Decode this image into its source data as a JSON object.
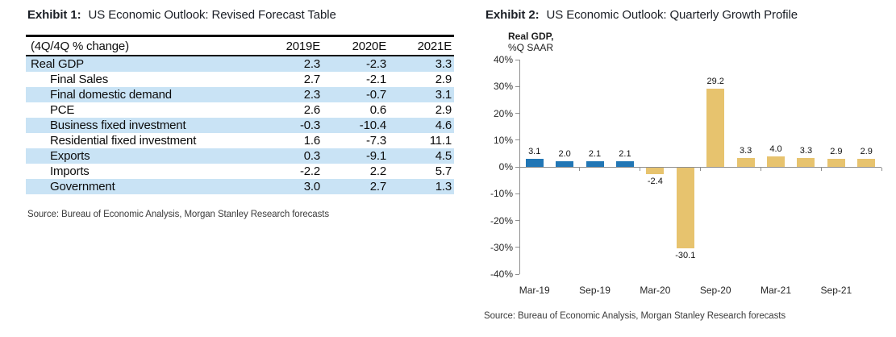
{
  "exhibit1": {
    "heading_label": "Exhibit 1:",
    "heading_title": "US Economic Outlook: Revised Forecast Table",
    "source": "Source: Bureau of Economic Analysis, Morgan Stanley Research forecasts"
  },
  "exhibit2": {
    "heading_label": "Exhibit 2:",
    "heading_title": "US Economic Outlook: Quarterly Growth Profile",
    "axis_title_line1": "Real GDP,",
    "axis_title_line2": "%Q SAAR",
    "source": "Source: Bureau of Economic Analysis, Morgan Stanley Research forecasts"
  },
  "colors": {
    "actual_bar": "#2176b5",
    "forecast_bar": "#e7c36e",
    "table_row_highlight": "#c9e3f5",
    "axis_line": "#8f8f8f"
  },
  "chart_data": [
    {
      "type": "table",
      "title": "US Economic Outlook: Revised Forecast Table",
      "header": [
        "(4Q/4Q % change)",
        "2019E",
        "2020E",
        "2021E"
      ],
      "rows": [
        {
          "label": "Real GDP",
          "indent": false,
          "highlighted": true,
          "values": [
            "2.3",
            "-2.3",
            "3.3"
          ]
        },
        {
          "label": "Final Sales",
          "indent": true,
          "highlighted": false,
          "values": [
            "2.7",
            "-2.1",
            "2.9"
          ]
        },
        {
          "label": "Final domestic demand",
          "indent": true,
          "highlighted": true,
          "values": [
            "2.3",
            "-0.7",
            "3.1"
          ]
        },
        {
          "label": "PCE",
          "indent": true,
          "highlighted": false,
          "values": [
            "2.6",
            "0.6",
            "2.9"
          ]
        },
        {
          "label": "Business fixed investment",
          "indent": true,
          "highlighted": true,
          "values": [
            "-0.3",
            "-10.4",
            "4.6"
          ]
        },
        {
          "label": "Residential fixed investment",
          "indent": true,
          "highlighted": false,
          "values": [
            "1.6",
            "-7.3",
            "11.1"
          ]
        },
        {
          "label": "Exports",
          "indent": true,
          "highlighted": true,
          "values": [
            "0.3",
            "-9.1",
            "4.5"
          ]
        },
        {
          "label": "Imports",
          "indent": true,
          "highlighted": false,
          "values": [
            "-2.2",
            "2.2",
            "5.7"
          ]
        },
        {
          "label": "Government",
          "indent": true,
          "highlighted": true,
          "values": [
            "3.0",
            "2.7",
            "1.3"
          ]
        }
      ],
      "source": "Source: Bureau of Economic Analysis, Morgan Stanley Research forecasts"
    },
    {
      "type": "bar",
      "title": "US Economic Outlook: Quarterly Growth Profile",
      "ylabel": "Real GDP, %Q SAAR",
      "values": [
        3.1,
        2.0,
        2.1,
        2.1,
        -2.4,
        -30.1,
        29.2,
        3.3,
        4.0,
        3.3,
        2.9,
        2.9
      ],
      "data_labels": [
        "3.1",
        "2.0",
        "2.1",
        "2.1",
        "-2.4",
        "-30.1",
        "29.2",
        "3.3",
        "4.0",
        "3.3",
        "2.9",
        "2.9"
      ],
      "actual_bar_count": 4,
      "x_tick_labels": [
        "Mar-19",
        "Sep-19",
        "Mar-20",
        "Sep-20",
        "Mar-21",
        "Sep-21"
      ],
      "x_tick_label_every_n_bars": 2,
      "y_tick_labels": [
        "40%",
        "30%",
        "20%",
        "10%",
        "0%",
        "-10%",
        "-20%",
        "-30%",
        "-40%"
      ],
      "ylim": [
        -40,
        40
      ],
      "grid": false,
      "legend": null,
      "source": "Source: Bureau of Economic Analysis, Morgan Stanley Research forecasts"
    }
  ]
}
